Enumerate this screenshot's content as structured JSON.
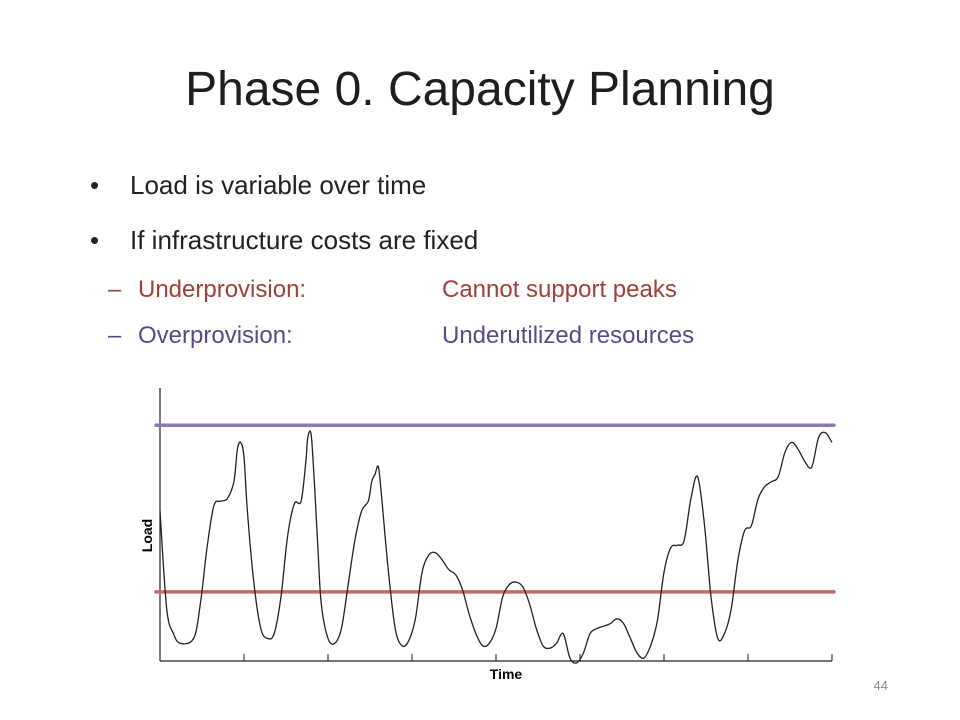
{
  "slide": {
    "title": "Phase 0. Capacity Planning",
    "bullets": [
      "Load is variable over time",
      "If infrastructure costs are fixed"
    ],
    "bullet_glyph": "•",
    "subbullet_glyph": "–",
    "subbullets": [
      {
        "label": "Underprovision:",
        "value": "Cannot support peaks",
        "color": "#a0403a"
      },
      {
        "label": "Overprovision:",
        "value": "Underutilized resources",
        "color": "#5a4a8a"
      }
    ],
    "page_number": "44"
  },
  "chart_data": {
    "type": "line",
    "xlabel": "Time",
    "ylabel": "Load",
    "xlim": [
      0,
      100
    ],
    "ylim": [
      0,
      100
    ],
    "grid": false,
    "tick_x": [
      0,
      12.5,
      25,
      37.5,
      50,
      62.5,
      75,
      87.5,
      100
    ],
    "series": [
      {
        "color": "#222222",
        "x": [
          0,
          1,
          2,
          3,
          5,
          6,
          7,
          8,
          9,
          10,
          11,
          11.5,
          12,
          12.5,
          13,
          14,
          15,
          16,
          17,
          18,
          19,
          20,
          21,
          21.7,
          22,
          22.5,
          23,
          23.5,
          24,
          25,
          26,
          27,
          28,
          29,
          30,
          31,
          31.5,
          32,
          32.5,
          33,
          34,
          35,
          36,
          37,
          38,
          39,
          40,
          41,
          42,
          43,
          44,
          45,
          46,
          47,
          48,
          49,
          50,
          51,
          52,
          53,
          54,
          55,
          56,
          57,
          58,
          59,
          60,
          61,
          62,
          63,
          64,
          65,
          66,
          67,
          68,
          69,
          70,
          71,
          72,
          73,
          74,
          75,
          76,
          77,
          78,
          79,
          80,
          81,
          82,
          83,
          84,
          85,
          86,
          87,
          88,
          89,
          90,
          91,
          92,
          93,
          94,
          95,
          96,
          97,
          98,
          99,
          100
        ],
        "y": [
          60,
          20,
          10,
          6,
          8,
          22,
          45,
          62,
          64,
          65,
          72,
          85,
          88,
          82,
          60,
          30,
          12,
          8,
          10,
          25,
          50,
          63,
          64,
          80,
          90,
          91,
          70,
          45,
          22,
          8,
          6,
          12,
          30,
          48,
          60,
          64,
          72,
          75,
          78,
          65,
          35,
          12,
          5,
          7,
          16,
          35,
          42,
          43,
          40,
          36,
          34,
          28,
          18,
          10,
          5,
          6,
          12,
          25,
          30,
          31,
          29,
          22,
          12,
          5,
          4,
          6,
          10,
          0,
          -2,
          2,
          10,
          12,
          13,
          14,
          16,
          14,
          8,
          2,
          0,
          5,
          15,
          35,
          45,
          46,
          48,
          65,
          74,
          55,
          25,
          8,
          10,
          20,
          40,
          52,
          54,
          65,
          70,
          72,
          74,
          84,
          88,
          85,
          80,
          78,
          90,
          92,
          88
        ]
      }
    ],
    "reference_lines": [
      {
        "y": 95,
        "color": "#8b7ab5",
        "label": "Overprovision"
      },
      {
        "y": 27,
        "color": "#c46a6a",
        "label": "Underprovision"
      }
    ]
  }
}
